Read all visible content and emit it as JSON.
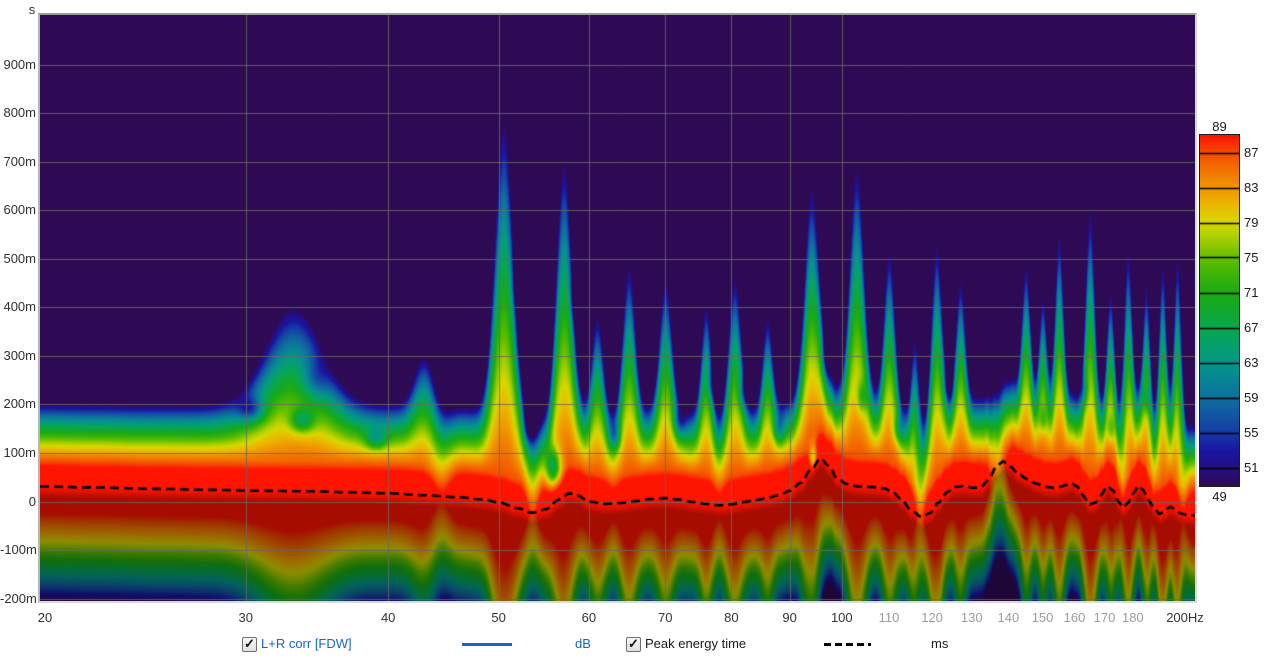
{
  "axes": {
    "y_unit_label": "s"
  },
  "legend": {
    "series1": {
      "label": "L+R corr [FDW]",
      "unit": "dB",
      "color": "#1565cd",
      "checked": true
    },
    "series2": {
      "label": "Peak energy time",
      "unit": "ms",
      "color": "#000000",
      "checked": true
    }
  },
  "chart_data": {
    "type": "heatmap",
    "subtype": "wavelet-spectrogram",
    "x_axis": {
      "unit": "Hz",
      "scale": "log",
      "min_hz": 20,
      "max_hz": 200,
      "major_ticks": [
        20,
        30,
        40,
        50,
        60,
        70,
        80,
        90,
        100
      ],
      "minor_ticks": [
        110,
        120,
        130,
        140,
        150,
        160,
        170,
        180
      ],
      "end_tick_label": "200Hz",
      "end_tick_hz": 200,
      "gridline_freqs": [
        30,
        40,
        50,
        60,
        70,
        80,
        90,
        100
      ]
    },
    "y_axis": {
      "unit": "s",
      "min_ms": -206,
      "max_ms": 1002,
      "gridline_step_ms": 100,
      "tick_values_ms": [
        900,
        800,
        700,
        600,
        500,
        400,
        300,
        200,
        100,
        0,
        -100,
        -200
      ],
      "tick_labels": [
        "900m",
        "800m",
        "700m",
        "600m",
        "500m",
        "400m",
        "300m",
        "200m",
        "100m",
        "0",
        "-100m",
        "-200m"
      ]
    },
    "colorbar": {
      "unit": "dB",
      "max_db": 89,
      "min_db": 49,
      "top_label": "89",
      "bottom_label": "49",
      "side_labels": [
        87,
        83,
        79,
        75,
        71,
        67,
        63,
        59,
        55,
        51
      ],
      "palette": [
        [
          49,
          "#2E0A54"
        ],
        [
          51,
          "#240E86"
        ],
        [
          53,
          "#1816A0"
        ],
        [
          55,
          "#163AA5"
        ],
        [
          57,
          "#1256A2"
        ],
        [
          59,
          "#0E709E"
        ],
        [
          61,
          "#088496"
        ],
        [
          63,
          "#069688"
        ],
        [
          65,
          "#04A06C"
        ],
        [
          67,
          "#0AA64E"
        ],
        [
          69,
          "#10A82C"
        ],
        [
          71,
          "#1EAA14"
        ],
        [
          73,
          "#3CB408"
        ],
        [
          75,
          "#64BE00"
        ],
        [
          77,
          "#A0CD00"
        ],
        [
          79,
          "#D7D700"
        ],
        [
          81,
          "#EBB900"
        ],
        [
          83,
          "#F09600"
        ],
        [
          85,
          "#F27300"
        ],
        [
          87,
          "#F64B00"
        ],
        [
          89,
          "#FF1400"
        ]
      ]
    },
    "series": [
      {
        "name": "L+R corr [FDW]",
        "unit": "dB",
        "style": "solid",
        "color": "#1565cd"
      },
      {
        "name": "Peak energy time",
        "unit": "ms",
        "style": "dashed",
        "color": "#000000",
        "points_f_ms": [
          [
            19.8,
            31
          ],
          [
            22,
            29
          ],
          [
            25,
            26
          ],
          [
            28,
            24
          ],
          [
            31,
            22
          ],
          [
            34,
            21
          ],
          [
            37,
            19
          ],
          [
            40,
            17
          ],
          [
            43,
            13
          ],
          [
            46,
            9
          ],
          [
            48.5,
            4
          ],
          [
            50,
            -2
          ],
          [
            52,
            -14
          ],
          [
            53.5,
            -23
          ],
          [
            55,
            -16
          ],
          [
            56.5,
            4
          ],
          [
            57.7,
            17
          ],
          [
            58.6,
            13
          ],
          [
            60,
            0
          ],
          [
            62,
            -5
          ],
          [
            64,
            -3
          ],
          [
            66,
            1
          ],
          [
            68,
            5
          ],
          [
            70,
            7
          ],
          [
            72,
            4
          ],
          [
            74,
            -1
          ],
          [
            76,
            -5
          ],
          [
            78,
            -8
          ],
          [
            80,
            -6
          ],
          [
            82,
            -1
          ],
          [
            84,
            3
          ],
          [
            86,
            7
          ],
          [
            88,
            13
          ],
          [
            90,
            22
          ],
          [
            92,
            38
          ],
          [
            94,
            66
          ],
          [
            95.8,
            89
          ],
          [
            97.5,
            72
          ],
          [
            99,
            48
          ],
          [
            101,
            36
          ],
          [
            103.5,
            31
          ],
          [
            106,
            30
          ],
          [
            109,
            27
          ],
          [
            111,
            18
          ],
          [
            113,
            2
          ],
          [
            115,
            -18
          ],
          [
            117.5,
            -32
          ],
          [
            119.5,
            -24
          ],
          [
            121.5,
            -3
          ],
          [
            123.5,
            18
          ],
          [
            125.5,
            30
          ],
          [
            128,
            32
          ],
          [
            130.5,
            28
          ],
          [
            132.5,
            30
          ],
          [
            134.5,
            45
          ],
          [
            136.5,
            70
          ],
          [
            138.5,
            83
          ],
          [
            140.5,
            72
          ],
          [
            143,
            56
          ],
          [
            145.5,
            46
          ],
          [
            148,
            37
          ],
          [
            151,
            30
          ],
          [
            154,
            28
          ],
          [
            156.5,
            32
          ],
          [
            159,
            38
          ],
          [
            161,
            30
          ],
          [
            163,
            10
          ],
          [
            165,
            -6
          ],
          [
            167,
            -2
          ],
          [
            169,
            15
          ],
          [
            171,
            32
          ],
          [
            173,
            22
          ],
          [
            175,
            -2
          ],
          [
            176.5,
            -13
          ],
          [
            178,
            -5
          ],
          [
            180,
            15
          ],
          [
            182,
            33
          ],
          [
            184,
            22
          ],
          [
            186,
            0
          ],
          [
            188,
            -14
          ],
          [
            190,
            -26
          ],
          [
            192,
            -20
          ],
          [
            194,
            -10
          ],
          [
            196,
            -16
          ],
          [
            198,
            -24
          ],
          [
            200,
            -27
          ],
          [
            204.5,
            -29
          ]
        ]
      }
    ],
    "model": {
      "peak_db": 96,
      "up_lin": 0.11,
      "up_quad": 0.00075,
      "up_offset_ms": 60,
      "dn_lin": 0.105,
      "dn_quad": 0.00042,
      "lowf_boost": 0.15,
      "lowf_lf0": 1.301,
      "lowf_span": 0.42,
      "dim_below": 0.35,
      "dim_ramp_ms": 22,
      "plumes": [
        [
          33,
          1.67,
          0.034
        ],
        [
          43,
          0.82,
          0.012
        ],
        [
          50.5,
          4.7,
          0.011
        ],
        [
          57,
          3.96,
          0.009
        ],
        [
          61,
          1.54,
          0.007
        ],
        [
          65,
          2.35,
          0.0075
        ],
        [
          70,
          2.05,
          0.0075
        ],
        [
          76,
          1.77,
          0.006
        ],
        [
          80.5,
          2.2,
          0.0075
        ],
        [
          86,
          1.45,
          0.006
        ],
        [
          94,
          3.07,
          0.0085
        ],
        [
          103,
          3.7,
          0.0085
        ],
        [
          110,
          2.4,
          0.0065
        ],
        [
          116,
          1.64,
          0.005
        ],
        [
          121,
          2.75,
          0.0065
        ],
        [
          127,
          1.86,
          0.0055
        ],
        [
          145,
          2.0,
          0.005
        ],
        [
          150,
          1.6,
          0.0045
        ],
        [
          155,
          2.63,
          0.005
        ],
        [
          165,
          3.3,
          0.0055
        ],
        [
          172,
          1.71,
          0.0045
        ],
        [
          178,
          2.74,
          0.005
        ],
        [
          185,
          1.95,
          0.0045
        ],
        [
          191,
          2.56,
          0.0045
        ],
        [
          197,
          2.84,
          0.0045
        ]
      ],
      "notches": [
        [
          44.5,
          -6,
          0.01
        ],
        [
          53.5,
          -8,
          0.007
        ],
        [
          63,
          -3,
          0.006
        ],
        [
          78,
          -4,
          0.006
        ],
        [
          117,
          -9,
          0.006
        ],
        [
          137,
          -12,
          0.0085
        ],
        [
          176,
          -5,
          0.0045
        ],
        [
          187.5,
          -4,
          0.004
        ],
        [
          199,
          -6,
          0.005
        ]
      ],
      "holes": [
        [
          30.3,
          190,
          -12,
          0.012,
          26
        ],
        [
          33.6,
          168,
          -12,
          0.01,
          24
        ],
        [
          39,
          130,
          -10,
          0.009,
          22
        ],
        [
          34.5,
          250,
          -8,
          0.012,
          45
        ],
        [
          52.3,
          450,
          -15,
          0.0055,
          55
        ],
        [
          52.8,
          330,
          -13,
          0.005,
          40
        ],
        [
          55.8,
          70,
          -18,
          0.0065,
          40
        ],
        [
          53.2,
          160,
          -10,
          0.005,
          35
        ],
        [
          58.5,
          420,
          -9,
          0.005,
          45
        ],
        [
          63.2,
          135,
          -8,
          0.005,
          26
        ],
        [
          67.5,
          290,
          -9,
          0.006,
          40
        ],
        [
          72,
          165,
          -9,
          0.006,
          32
        ],
        [
          77,
          240,
          -8,
          0.005,
          35
        ],
        [
          82,
          225,
          -8,
          0.005,
          32
        ],
        [
          88,
          150,
          -8,
          0.005,
          28
        ],
        [
          94.3,
          90,
          -13,
          0.004,
          28
        ],
        [
          97,
          300,
          -9,
          0.0045,
          40
        ],
        [
          104,
          215,
          -8,
          0.0045,
          32
        ],
        [
          112,
          150,
          -8,
          0.0045,
          28
        ],
        [
          124,
          240,
          -8,
          0.004,
          32
        ],
        [
          150,
          170,
          -7,
          0.0035,
          28
        ],
        [
          163,
          230,
          -7,
          0.0035,
          30
        ],
        [
          172,
          150,
          -7,
          0.0035,
          28
        ],
        [
          185,
          210,
          -7,
          0.0035,
          28
        ]
      ],
      "background": "#2E0A54",
      "gridline_color": "rgba(104,104,94,0.85)"
    }
  }
}
